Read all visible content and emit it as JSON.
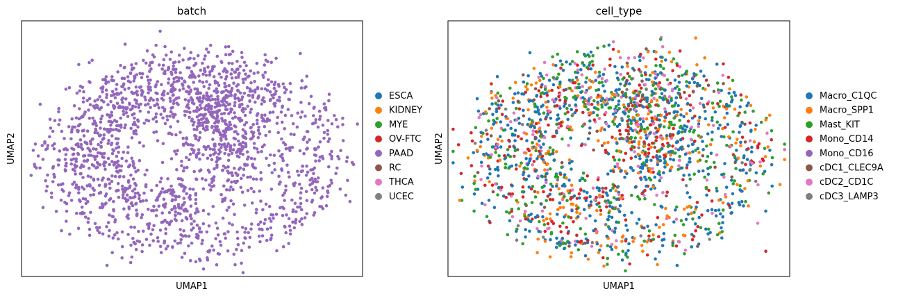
{
  "chart_data": [
    {
      "type": "scatter",
      "title": "batch",
      "xlabel": "UMAP1",
      "ylabel": "UMAP2",
      "xticks": false,
      "yticks": false,
      "grid": false,
      "legend_placement": "right",
      "color_by": "batch",
      "legend": [
        {
          "label": "ESCA",
          "color": "#1f77b4"
        },
        {
          "label": "KIDNEY",
          "color": "#ff7f0e"
        },
        {
          "label": "MYE",
          "color": "#2ca02c"
        },
        {
          "label": "OV-FTC",
          "color": "#d62728"
        },
        {
          "label": "PAAD",
          "color": "#9467bd"
        },
        {
          "label": "RC",
          "color": "#8c564b"
        },
        {
          "label": "THCA",
          "color": "#e377c2"
        },
        {
          "label": "UCEC",
          "color": "#7f7f7f"
        }
      ],
      "points_color": "#9467bd"
    },
    {
      "type": "scatter",
      "title": "cell_type",
      "xlabel": "UMAP1",
      "ylabel": "UMAP2",
      "xticks": false,
      "yticks": false,
      "grid": false,
      "legend_placement": "right",
      "color_by": "cell_type",
      "legend": [
        {
          "label": "Macro_C1QC",
          "color": "#1f77b4"
        },
        {
          "label": "Macro_SPP1",
          "color": "#ff7f0e"
        },
        {
          "label": "Mast_KIT",
          "color": "#2ca02c"
        },
        {
          "label": "Mono_CD14",
          "color": "#d62728"
        },
        {
          "label": "Mono_CD16",
          "color": "#9467bd"
        },
        {
          "label": "cDC1_CLEC9A",
          "color": "#8c564b"
        },
        {
          "label": "cDC2_CD1C",
          "color": "#e377c2"
        },
        {
          "label": "cDC3_LAMP3",
          "color": "#7f7f7f"
        }
      ],
      "color_weights": [
        0.36,
        0.14,
        0.2,
        0.14,
        0.0,
        0.04,
        0.1,
        0.02
      ]
    }
  ]
}
